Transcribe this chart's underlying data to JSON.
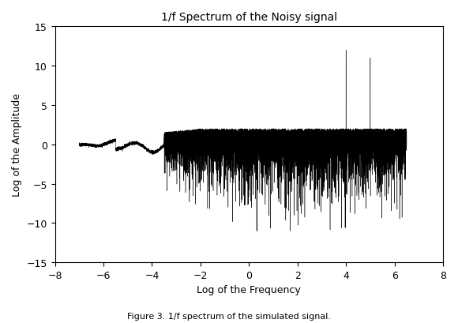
{
  "title": "1/f Spectrum of the Noisy signal",
  "xlabel": "Log of the Frequency",
  "ylabel": "Log of the Amplitude",
  "xlim": [
    -8,
    8
  ],
  "ylim": [
    -15,
    15
  ],
  "xticks": [
    -8,
    -6,
    -4,
    -2,
    0,
    2,
    4,
    6,
    8
  ],
  "yticks": [
    -15,
    -10,
    -5,
    0,
    5,
    10,
    15
  ],
  "caption": "Figure 3. 1/f spectrum of the simulated signal.",
  "line_color": "black",
  "bg_color": "white",
  "seed": 42,
  "n_points": 12000,
  "spike1_x": 4.0,
  "spike1_y": 12.0,
  "spike2_x": 5.0,
  "spike2_y": 11.0
}
